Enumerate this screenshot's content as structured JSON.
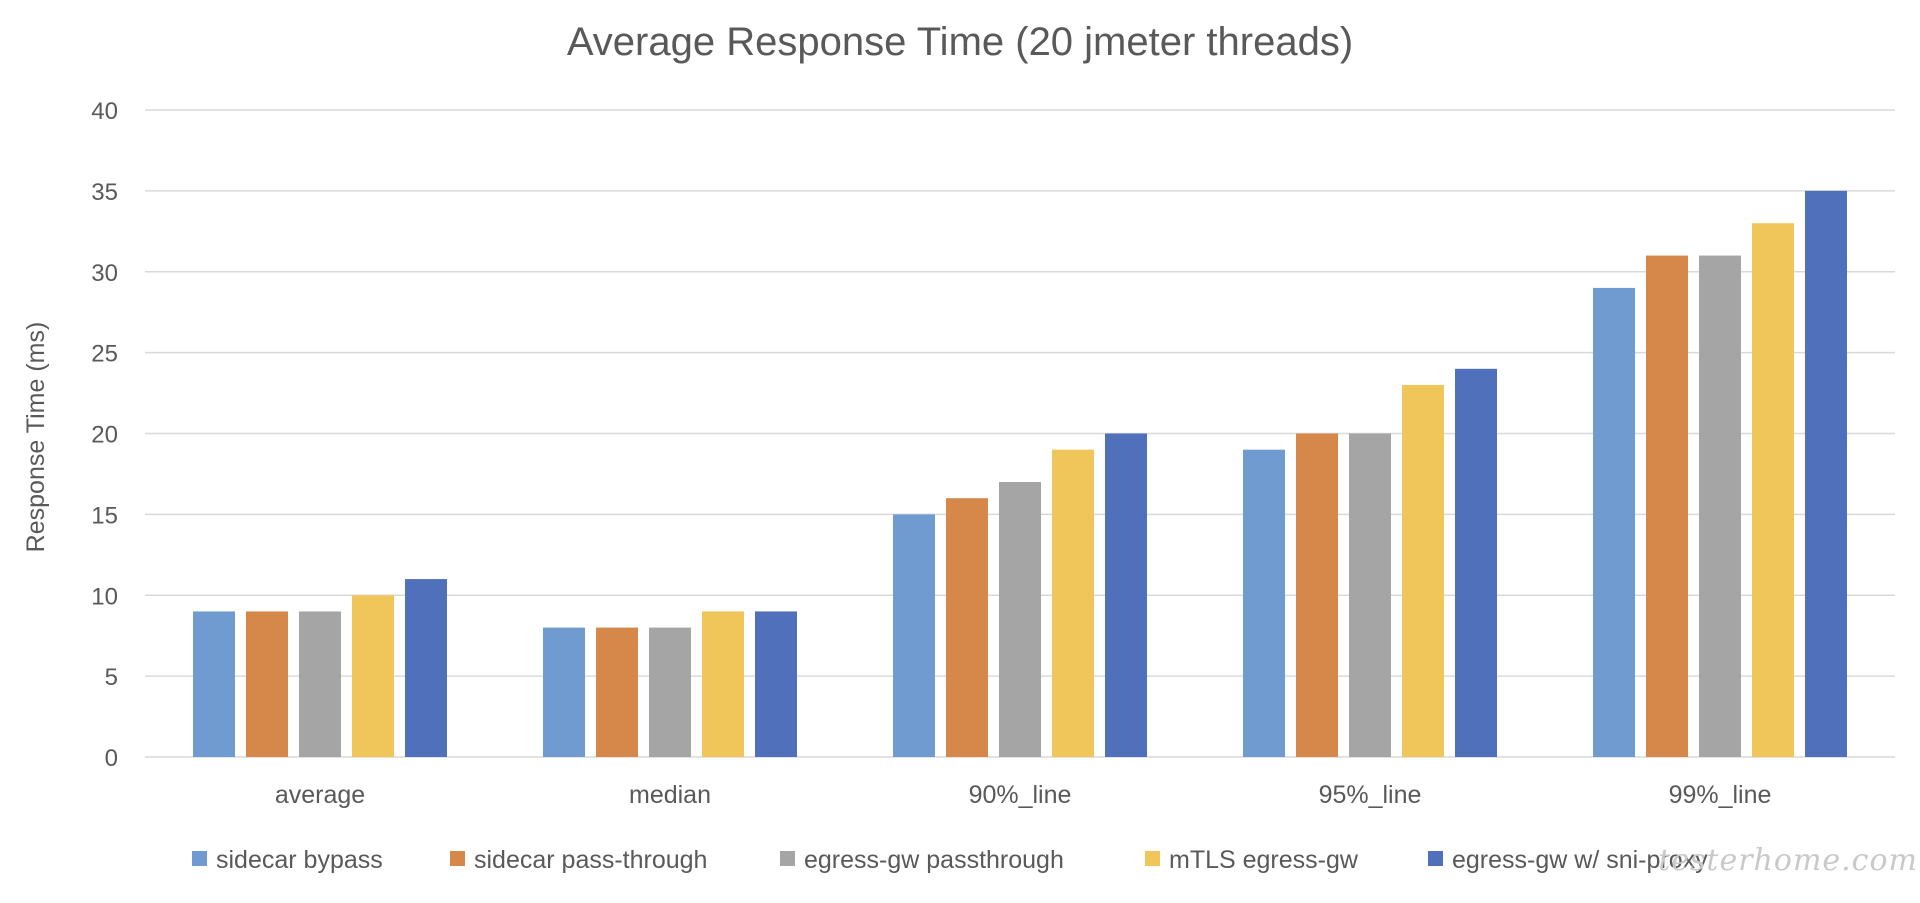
{
  "chart_data": {
    "type": "bar",
    "title": "Average Response Time (20 jmeter threads)",
    "xlabel": "",
    "ylabel": "Response Time (ms)",
    "ylim": [
      0,
      40
    ],
    "yticks": [
      0,
      5,
      10,
      15,
      20,
      25,
      30,
      35,
      40
    ],
    "grid": true,
    "legend_position": "bottom",
    "categories": [
      "average",
      "median",
      "90%_line",
      "95%_line",
      "99%_line"
    ],
    "series": [
      {
        "name": "sidecar bypass",
        "color": "#6f9bd1",
        "values": [
          9,
          8,
          15,
          19,
          29
        ]
      },
      {
        "name": "sidecar pass-through",
        "color": "#d6874a",
        "values": [
          9,
          8,
          16,
          20,
          31
        ]
      },
      {
        "name": "egress-gw passthrough",
        "color": "#a5a5a5",
        "values": [
          9,
          8,
          17,
          20,
          31
        ]
      },
      {
        "name": "mTLS egress-gw",
        "color": "#f0c55a",
        "values": [
          10,
          9,
          19,
          23,
          33
        ]
      },
      {
        "name": "egress-gw w/ sni-proxy",
        "color": "#5070bb",
        "values": [
          11,
          9,
          20,
          24,
          35
        ]
      }
    ]
  },
  "watermark": "testerhome.com"
}
